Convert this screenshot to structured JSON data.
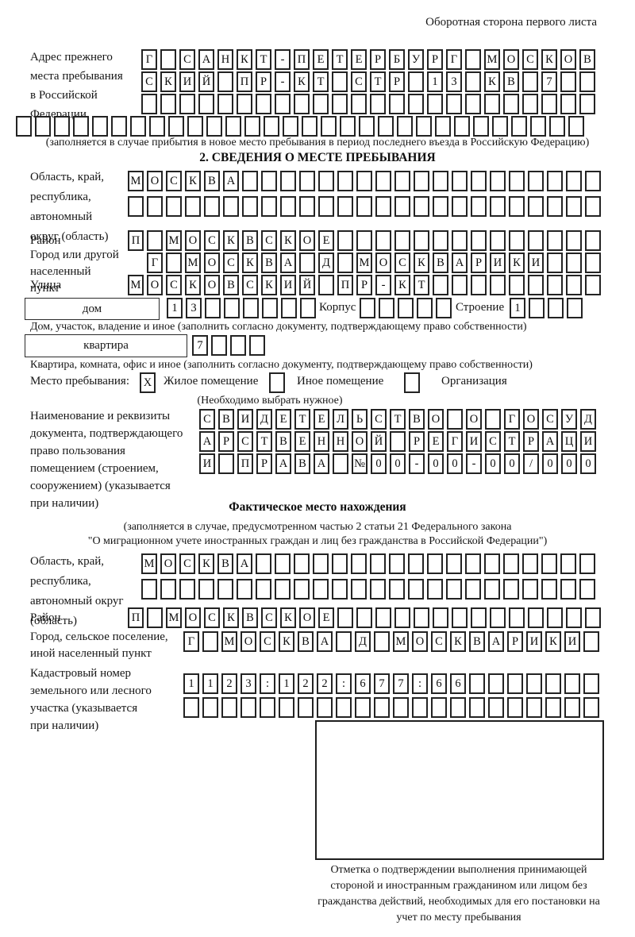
{
  "page_title": "Оборотная сторона первого листа",
  "prev_address": {
    "label": "Адрес прежнего места пребывания в Российской Федерации",
    "rows": [
      {
        "text": "Г САНКТ-ПЕТЕРБУРГ МОСКОВ",
        "len": 24
      },
      {
        "text": "СКИЙ ПР-КТ СТР 13 КВ 7",
        "len": 24
      },
      {
        "text": "",
        "len": 24
      },
      {
        "text": "",
        "len": 30
      }
    ],
    "note": "(заполняется в случае прибытия в новое место пребывания в период последнего въезда в Российскую Федерацию)"
  },
  "section2": {
    "heading": "2. СВЕДЕНИЯ О МЕСТЕ ПРЕБЫВАНИЯ",
    "oblast": {
      "label": "Область, край, республика, автономный округ (область)",
      "rows": [
        {
          "text": "МОСКВА",
          "len": 25
        },
        {
          "text": "",
          "len": 25
        }
      ]
    },
    "raion": {
      "label": "Район",
      "cells": {
        "text": "П МОСКВСКОЕ",
        "len": 25
      }
    },
    "gorod": {
      "label": "Город или другой населенный пункт",
      "cells": {
        "text": "Г МОСКВА Д МОСКВАРИКИ",
        "len": 24
      }
    },
    "ulitsa": {
      "label": "Улица",
      "cells": {
        "text": "МОСКОВСКИЙ ПР-КТ",
        "len": 25
      }
    },
    "dom": {
      "box_label": "дом",
      "cells": {
        "text": "13",
        "len": 8
      },
      "korpus_label": "Корпус",
      "korpus_cells": {
        "text": "",
        "len": 5
      },
      "stroenie_label": "Строение",
      "stroenie_cells": {
        "text": "1",
        "len": 4
      },
      "note": "Дом, участок, владение и иное (заполнить согласно документу, подтверждающему право собственности)"
    },
    "kvartira": {
      "box_label": "квартира",
      "cells": {
        "text": "7",
        "len": 4
      },
      "note": "Квартира, комната, офис и иное (заполнить согласно документу, подтверждающему право собственности)"
    },
    "mesto": {
      "label": "Место пребывания:",
      "checkbox_zhiloe": "X",
      "option_zhiloe": "Жилое помещение",
      "checkbox_inoe": "",
      "option_inoe": "Иное помещение",
      "checkbox_org": "",
      "option_org": "Организация",
      "note": "(Необходимо выбрать нужное)"
    },
    "document": {
      "label": "Наименование и реквизиты документа, подтверждающего право пользования помещением (строением, сооружением) (указывается при наличии)",
      "rows": [
        {
          "text": "СВИДЕТЕЛЬСТВО О ГОСУД",
          "len": 21
        },
        {
          "text": "АРСТВЕННОЙ РЕГИСТРАЦИ",
          "len": 21
        },
        {
          "text": "И ПРАВА №00-00-00/000",
          "len": 21
        }
      ]
    }
  },
  "actual_location": {
    "heading": "Фактическое место нахождения",
    "note_line1": "(заполняется в случае, предусмотренном частью 2 статьи 21 Федерального закона",
    "note_line2": "\"О миграционном учете иностранных граждан и лиц без гражданства в Российской Федерации\")",
    "oblast": {
      "label": "Область, край, республика, автономный округ (область)",
      "rows": [
        {
          "text": "МОСКВА",
          "len": 24
        },
        {
          "text": "",
          "len": 24
        }
      ]
    },
    "raion": {
      "label": "Район",
      "cells": {
        "text": "П МОСКВСКОЕ",
        "len": 25
      }
    },
    "gorod": {
      "label": "Город, сельское поселение, иной населенный пункт",
      "cells": {
        "text": "Г МОСКВА Д МОСКВАРИКИ",
        "len": 22
      }
    },
    "kadastr": {
      "label": "Кадастровый номер земельного или лесного участка (указывается при наличии)",
      "rows": [
        {
          "text": "1123:122:677:66",
          "len": 22
        },
        {
          "text": "",
          "len": 22
        }
      ]
    },
    "stamp_note": "Отметка о подтверждении выполнения принимающей стороной и иностранным гражданином или лицом без гражданства действий, необходимых для его постановки на учет по месту пребывания"
  }
}
